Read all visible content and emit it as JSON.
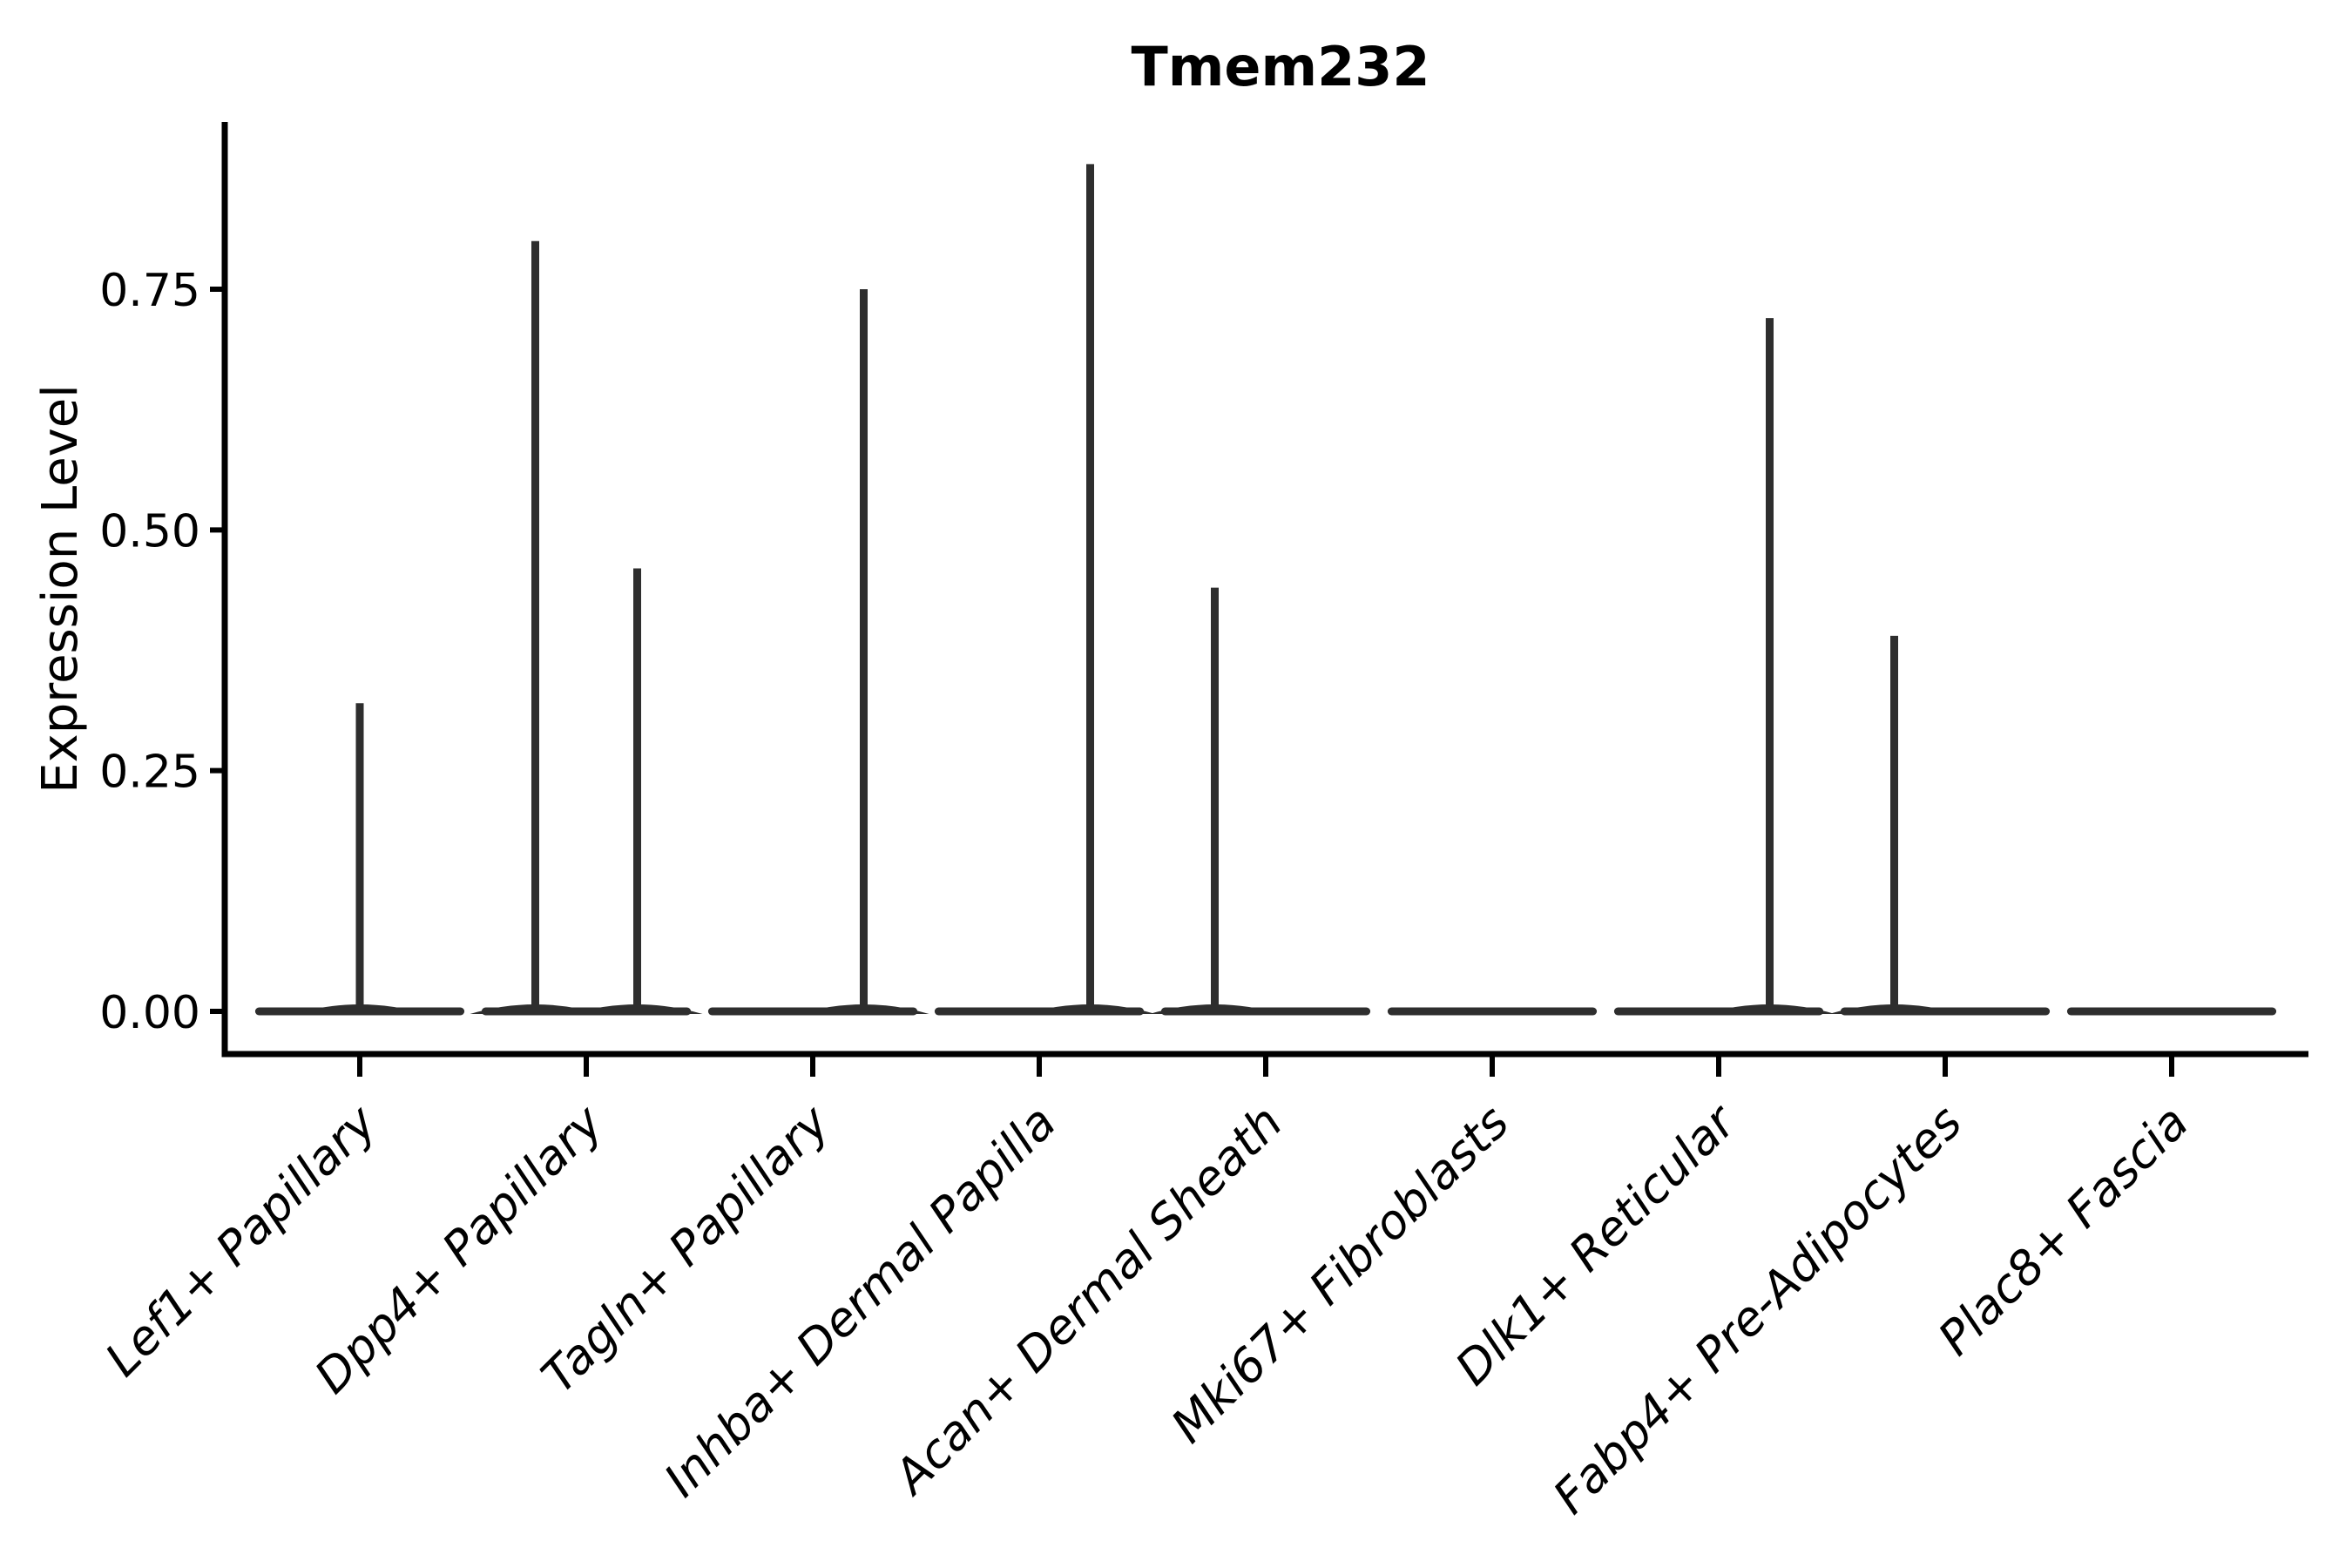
{
  "title": "Tmem232",
  "y_axis": {
    "label": "Expression Level",
    "ticks": [
      "0.00",
      "0.25",
      "0.50",
      "0.75"
    ]
  },
  "x_axis": {
    "label": ""
  },
  "colors": {
    "violin_stroke": "#2e2e2e",
    "axis": "#000000",
    "text": "#000000",
    "background": "#ffffff"
  },
  "chart_data": {
    "type": "violin",
    "title": "Tmem232",
    "ylabel": "Expression Level",
    "xlabel": "",
    "ylim": [
      0,
      0.92
    ],
    "yticks": [
      0,
      0.25,
      0.5,
      0.75
    ],
    "grid": false,
    "legend": false,
    "categories": [
      "Lef1+ Papillary",
      "Dpp4+ Papillary",
      "Tagln+ Papillary",
      "Inhba+ Dermal Papilla",
      "Acan+ Dermal Sheath",
      "Mki67+ Fibroblasts",
      "Dlk1+ Reticular",
      "Fabp4+ Pre-Adipocytes",
      "Plac8+ Fascia"
    ],
    "violins": [
      {
        "category": "Lef1+ Papillary",
        "baseline_halfwidth": 0.46,
        "peaks": [
          {
            "offset": 0.0,
            "max_expression": 0.32
          }
        ]
      },
      {
        "category": "Dpp4+ Papillary",
        "baseline_halfwidth": 0.46,
        "peaks": [
          {
            "offset": -0.225,
            "max_expression": 0.8
          },
          {
            "offset": 0.225,
            "max_expression": 0.46
          }
        ]
      },
      {
        "category": "Tagln+ Papillary",
        "baseline_halfwidth": 0.46,
        "peaks": [
          {
            "offset": 0.225,
            "max_expression": 0.75
          }
        ]
      },
      {
        "category": "Inhba+ Dermal Papilla",
        "baseline_halfwidth": 0.46,
        "peaks": [
          {
            "offset": 0.225,
            "max_expression": 0.88
          }
        ]
      },
      {
        "category": "Acan+ Dermal Sheath",
        "baseline_halfwidth": 0.46,
        "peaks": [
          {
            "offset": -0.225,
            "max_expression": 0.44
          }
        ]
      },
      {
        "category": "Mki67+ Fibroblasts",
        "baseline_halfwidth": 0.46,
        "peaks": []
      },
      {
        "category": "Dlk1+ Reticular",
        "baseline_halfwidth": 0.46,
        "peaks": [
          {
            "offset": 0.225,
            "max_expression": 0.72
          }
        ]
      },
      {
        "category": "Fabp4+ Pre-Adipocytes",
        "baseline_halfwidth": 0.46,
        "peaks": [
          {
            "offset": -0.225,
            "max_expression": 0.39
          }
        ]
      },
      {
        "category": "Plac8+ Fascia",
        "baseline_halfwidth": 0.46,
        "peaks": []
      }
    ]
  }
}
